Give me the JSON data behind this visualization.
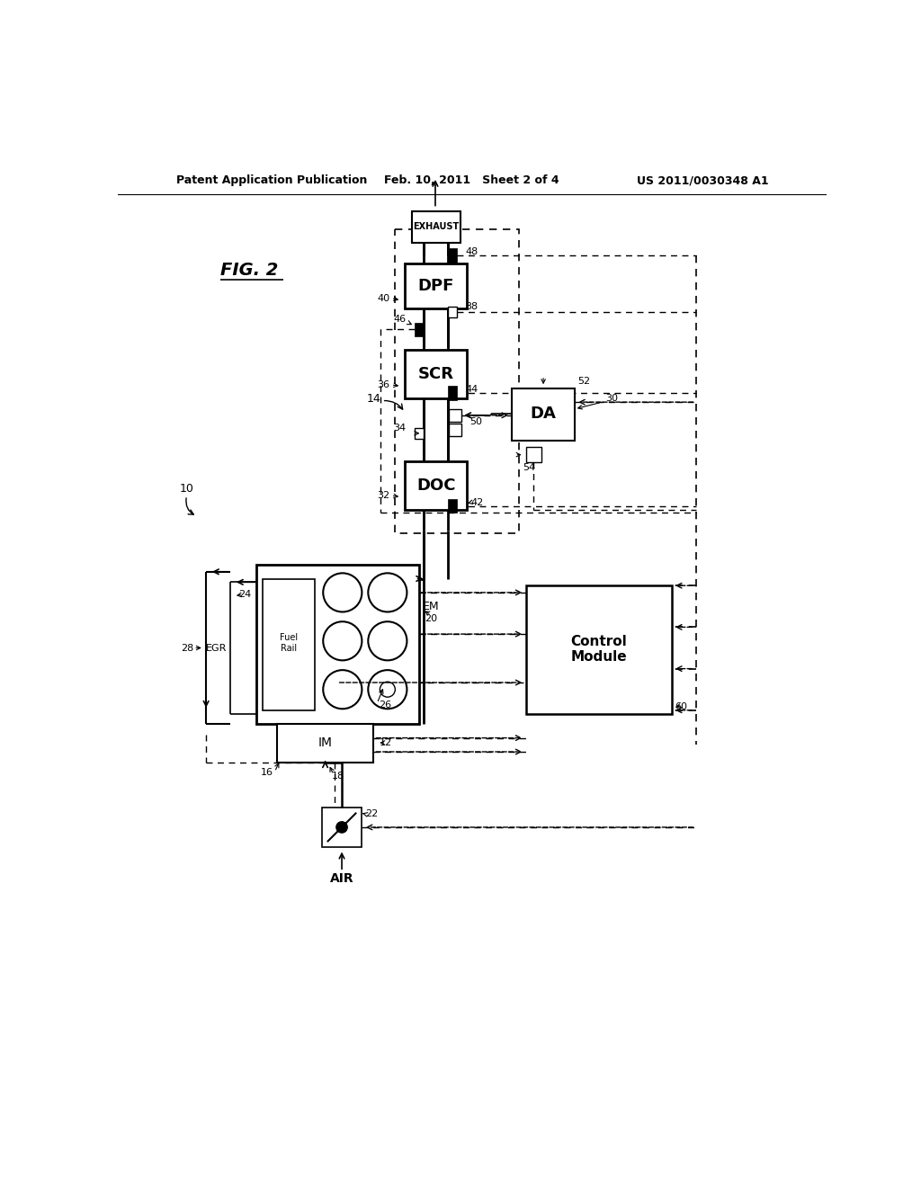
{
  "title_left": "Patent Application Publication",
  "title_mid": "Feb. 10, 2011   Sheet 2 of 4",
  "title_right": "US 2011/0030348 A1",
  "bg_color": "#ffffff",
  "lw_thick": 1.5,
  "lw_med": 1.2,
  "lw_thin": 0.9
}
